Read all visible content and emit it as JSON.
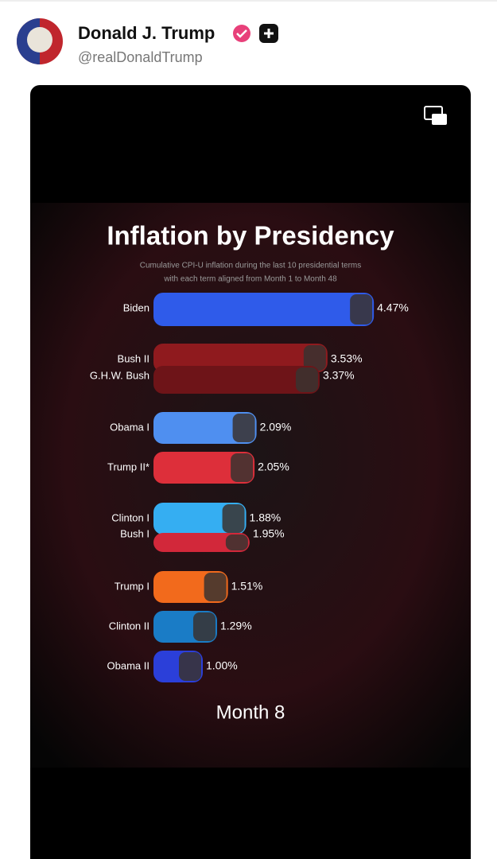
{
  "header": {
    "name": "Donald J. Trump",
    "handle": "@realDonaldTrump"
  },
  "chart_data": {
    "type": "bar",
    "orientation": "horizontal",
    "title": "Inflation by Presidency",
    "subtitle": [
      "Cumulative CPI-U inflation during the last 10 presidential terms",
      "with each term aligned from Month 1 to Month 48"
    ],
    "categories": [
      "Biden",
      "Bush II",
      "G.H.W. Bush",
      "Obama I",
      "Trump II*",
      "Clinton I",
      "Bush I",
      "Trump I",
      "Clinton II",
      "Obama II"
    ],
    "values": [
      4.47,
      3.53,
      3.37,
      2.09,
      2.05,
      1.88,
      1.95,
      1.51,
      1.29,
      1.0
    ],
    "value_labels": [
      "4.47%",
      "3.53%",
      "3.37%",
      "2.09%",
      "2.05%",
      "1.88%",
      "1.95%",
      "1.51%",
      "1.29%",
      "1.00%"
    ],
    "colors": [
      "#2f5bea",
      "#8f1a1e",
      "#6e1418",
      "#4f8ff0",
      "#dd2f3a",
      "#35aef2",
      "#d2283a",
      "#f26a1c",
      "#1a7cc6",
      "#2b3fd9"
    ],
    "annotation": "Month 8"
  }
}
